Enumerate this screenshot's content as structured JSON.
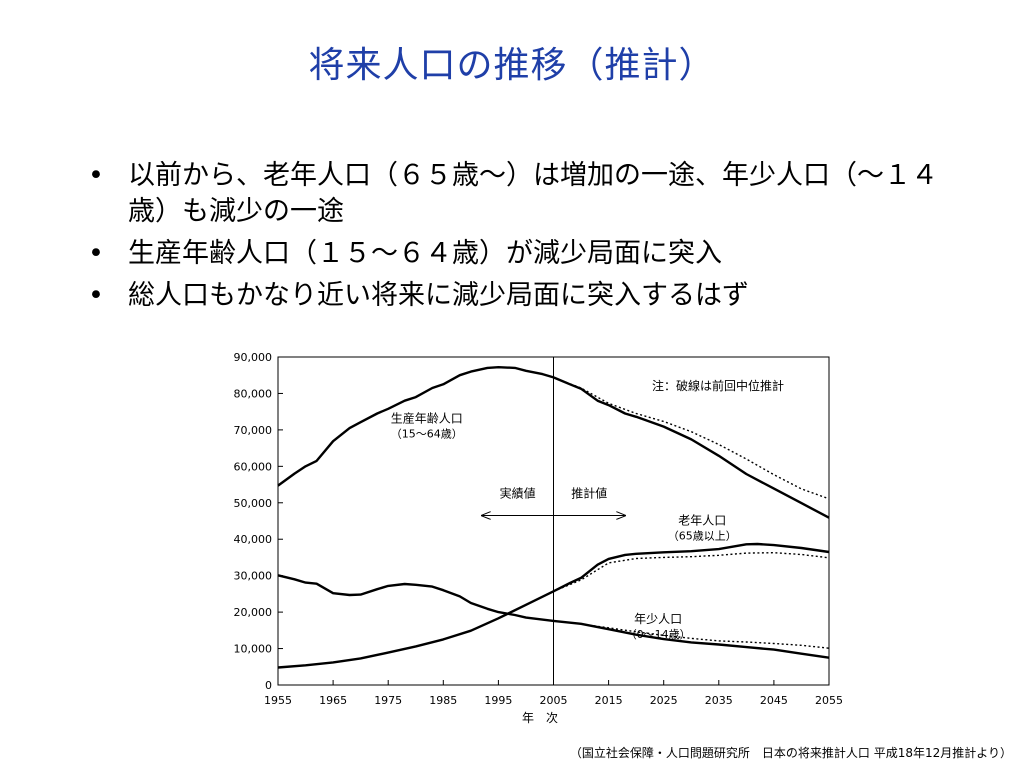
{
  "slide": {
    "title": "将来人口の推移（推計）",
    "bullets": [
      "以前から、老年人口（６５歳～）は増加の一途、年少人口（～１４歳）も減少の一途",
      "生産年齢人口（１５～６４歳）が減少局面に突入",
      "総人口もかなり近い将来に減少局面に突入するはず"
    ],
    "bullet_symbol": "•",
    "source": "（国立社会保障・人口問題研究所　日本の将来推計人口 平成18年12月推計より）"
  },
  "chart_data": {
    "type": "line",
    "xlabel": "年　次",
    "ylabel": "",
    "xlim": [
      1955,
      2055
    ],
    "ylim": [
      0,
      90000
    ],
    "xticks": [
      "1955",
      "1965",
      "1975",
      "1985",
      "1995",
      "2005",
      "2015",
      "2025",
      "2035",
      "2045",
      "2055"
    ],
    "yticks": [
      "0",
      "10,000",
      "20,000",
      "30,000",
      "40,000",
      "50,000",
      "60,000",
      "70,000",
      "80,000",
      "90,000"
    ],
    "note": "注：破線は前回中位推計",
    "divider_year": 2005,
    "left_arrow_label": "実績値",
    "right_arrow_label": "推計値",
    "series": [
      {
        "name": "生産年齢人口",
        "sublabel": "（15～64歳）",
        "style": "solid",
        "x": [
          1955,
          1958,
          1960,
          1962,
          1965,
          1968,
          1970,
          1973,
          1975,
          1978,
          1980,
          1983,
          1985,
          1988,
          1990,
          1993,
          1995,
          1998,
          2000,
          2003,
          2005,
          2008,
          2010,
          2013,
          2015,
          2018,
          2020,
          2025,
          2030,
          2035,
          2040,
          2045,
          2050,
          2055
        ],
        "y": [
          54700,
          58000,
          60000,
          61500,
          66900,
          70500,
          72100,
          74500,
          75800,
          78000,
          79000,
          81500,
          82500,
          85000,
          86000,
          87000,
          87200,
          87000,
          86200,
          85300,
          84400,
          82500,
          81300,
          78000,
          76800,
          74500,
          73600,
          70900,
          67400,
          62900,
          57900,
          53900,
          49900,
          45900
        ]
      },
      {
        "name": "老年人口",
        "sublabel": "（65歳以上）",
        "style": "solid",
        "x": [
          1955,
          1960,
          1965,
          1970,
          1975,
          1980,
          1985,
          1990,
          1995,
          2000,
          2005,
          2008,
          2010,
          2013,
          2015,
          2018,
          2020,
          2025,
          2030,
          2035,
          2040,
          2042,
          2045,
          2050,
          2055
        ],
        "y": [
          4800,
          5400,
          6200,
          7300,
          8900,
          10600,
          12500,
          14900,
          18300,
          22000,
          25700,
          28000,
          29400,
          33000,
          34600,
          35700,
          36000,
          36400,
          36700,
          37300,
          38600,
          38700,
          38400,
          37600,
          36500
        ]
      },
      {
        "name": "年少人口",
        "sublabel": "（0～14歳）",
        "style": "solid",
        "x": [
          1955,
          1958,
          1960,
          1962,
          1965,
          1968,
          1970,
          1973,
          1975,
          1978,
          1980,
          1983,
          1985,
          1988,
          1990,
          1993,
          1995,
          1998,
          2000,
          2005,
          2010,
          2015,
          2020,
          2025,
          2030,
          2035,
          2040,
          2045,
          2050,
          2055
        ],
        "y": [
          30100,
          29000,
          28100,
          27800,
          25200,
          24700,
          24800,
          26300,
          27200,
          27700,
          27500,
          27000,
          26000,
          24300,
          22500,
          20900,
          20000,
          19200,
          18500,
          17600,
          16800,
          15300,
          13800,
          12600,
          11700,
          11100,
          10400,
          9700,
          8600,
          7500
        ]
      },
      {
        "name": "生産年齢人口（前回推計）",
        "style": "dashed",
        "x": [
          2005,
          2010,
          2015,
          2020,
          2025,
          2030,
          2035,
          2040,
          2045,
          2050,
          2055
        ],
        "y": [
          84400,
          81500,
          77300,
          74500,
          72300,
          69500,
          66000,
          62000,
          57700,
          53800,
          51100
        ]
      },
      {
        "name": "老年人口（前回推計）",
        "style": "dashed",
        "x": [
          2005,
          2010,
          2015,
          2020,
          2025,
          2030,
          2035,
          2040,
          2045,
          2050,
          2055
        ],
        "y": [
          25700,
          28800,
          33500,
          34700,
          35000,
          35200,
          35600,
          36200,
          36300,
          35800,
          34900
        ]
      },
      {
        "name": "年少人口（前回推計）",
        "style": "dashed",
        "x": [
          2005,
          2010,
          2015,
          2020,
          2025,
          2030,
          2035,
          2040,
          2045,
          2050,
          2055
        ],
        "y": [
          17600,
          16700,
          15700,
          14600,
          13600,
          12800,
          12100,
          11800,
          11400,
          10900,
          10100
        ]
      }
    ],
    "series_labels": [
      {
        "series": 0,
        "at": [
          1982,
          72000
        ]
      },
      {
        "series": 1,
        "at": [
          2032,
          44000
        ]
      },
      {
        "series": 2,
        "at": [
          2024,
          17000
        ]
      }
    ]
  }
}
